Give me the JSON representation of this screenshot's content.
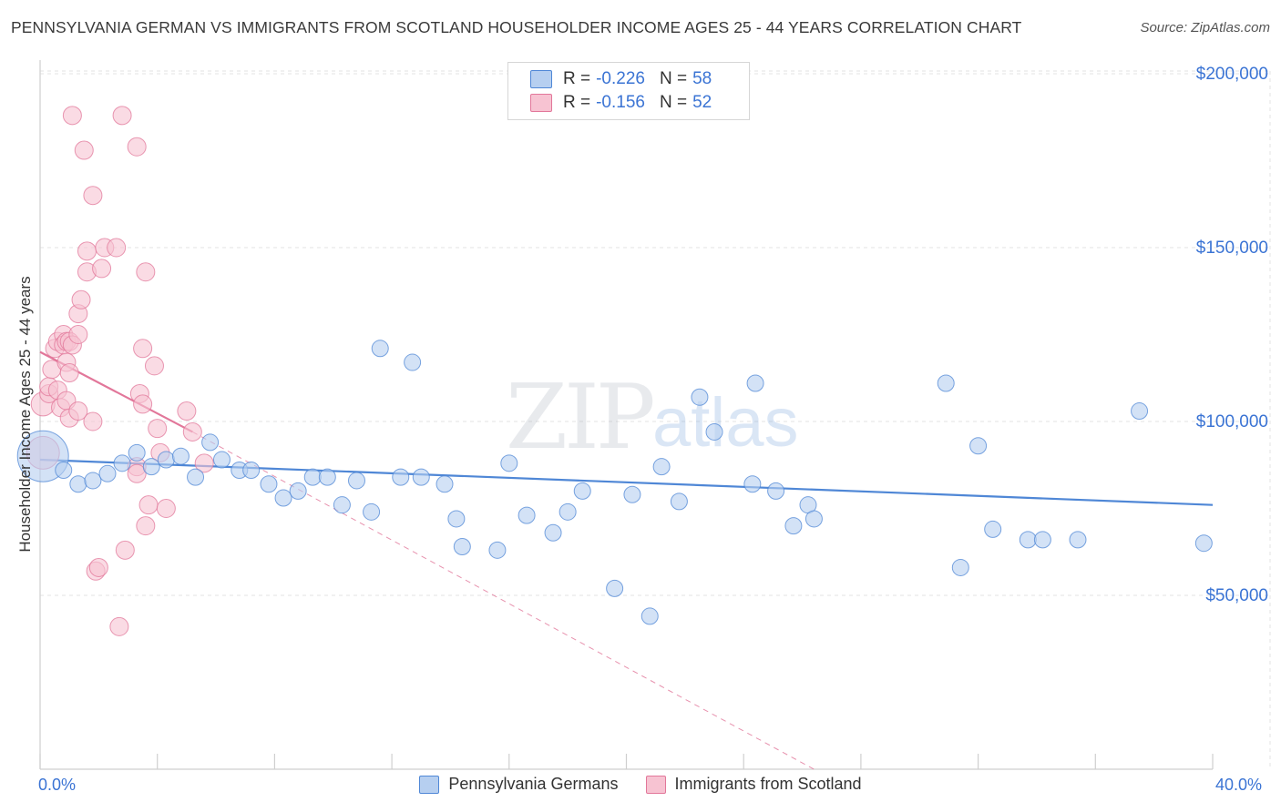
{
  "title": "PENNSYLVANIA GERMAN VS IMMIGRANTS FROM SCOTLAND HOUSEHOLDER INCOME AGES 25 - 44 YEARS CORRELATION CHART",
  "source": "Source: ZipAtlas.com",
  "watermark": {
    "zip": "ZIP",
    "atlas": "atlas"
  },
  "legend": {
    "r_label": "R =",
    "n_label": "N =",
    "series1": {
      "r": "-0.226",
      "n": "58"
    },
    "series2": {
      "r": "-0.156",
      "n": "52"
    }
  },
  "x_axis": {
    "min_label": "0.0%",
    "max_label": "40.0%"
  },
  "chart_data": {
    "type": "scatter",
    "title": "PENNSYLVANIA GERMAN VS IMMIGRANTS FROM SCOTLAND HOUSEHOLDER INCOME AGES 25 - 44 YEARS CORRELATION CHART",
    "xlabel": "",
    "ylabel": "Householder Income Ages 25 - 44 years",
    "xlim": [
      0,
      40
    ],
    "ylim": [
      0,
      210000
    ],
    "y_ticks": [
      50000,
      100000,
      150000,
      200000
    ],
    "y_tick_labels": [
      "$50,000",
      "$100,000",
      "$150,000",
      "$200,000"
    ],
    "grid": true,
    "series": [
      {
        "name": "Pennsylvania Germans",
        "color": "#4f87d6",
        "fill": "#b6cff0",
        "r": -0.226,
        "n": 58,
        "trend": {
          "x": [
            0,
            40
          ],
          "y": [
            89000,
            76000
          ],
          "style": "solid"
        },
        "points": [
          [
            0.1,
            90000,
            28
          ],
          [
            0.8,
            86000,
            9
          ],
          [
            1.3,
            82000,
            9
          ],
          [
            1.8,
            83000,
            9
          ],
          [
            2.3,
            85000,
            9
          ],
          [
            2.8,
            88000,
            9
          ],
          [
            3.3,
            91000,
            9
          ],
          [
            3.8,
            87000,
            9
          ],
          [
            4.3,
            89000,
            9
          ],
          [
            4.8,
            90000,
            9
          ],
          [
            5.3,
            84000,
            9
          ],
          [
            5.8,
            94000,
            9
          ],
          [
            6.2,
            89000,
            9
          ],
          [
            6.8,
            86000,
            9
          ],
          [
            7.2,
            86000,
            9
          ],
          [
            7.8,
            82000,
            9
          ],
          [
            8.3,
            78000,
            9
          ],
          [
            8.8,
            80000,
            9
          ],
          [
            9.3,
            84000,
            9
          ],
          [
            9.8,
            84000,
            9
          ],
          [
            10.3,
            76000,
            9
          ],
          [
            10.8,
            83000,
            9
          ],
          [
            11.3,
            74000,
            9
          ],
          [
            12.3,
            84000,
            9
          ],
          [
            13.0,
            84000,
            9
          ],
          [
            13.8,
            82000,
            9
          ],
          [
            14.2,
            72000,
            9
          ],
          [
            14.4,
            64000,
            9
          ],
          [
            15.6,
            63000,
            9
          ],
          [
            16.0,
            88000,
            9
          ],
          [
            16.6,
            73000,
            9
          ],
          [
            17.5,
            68000,
            9
          ],
          [
            18.0,
            74000,
            9
          ],
          [
            18.5,
            80000,
            9
          ],
          [
            19.6,
            52000,
            9
          ],
          [
            20.2,
            79000,
            9
          ],
          [
            20.8,
            44000,
            9
          ],
          [
            21.2,
            87000,
            9
          ],
          [
            21.8,
            77000,
            9
          ],
          [
            22.5,
            107000,
            9
          ],
          [
            23.0,
            97000,
            9
          ],
          [
            24.3,
            82000,
            9
          ],
          [
            24.4,
            111000,
            9
          ],
          [
            25.1,
            80000,
            9
          ],
          [
            25.7,
            70000,
            9
          ],
          [
            26.2,
            76000,
            9
          ],
          [
            26.4,
            72000,
            9
          ],
          [
            11.6,
            121000,
            9
          ],
          [
            12.7,
            117000,
            9
          ],
          [
            30.9,
            111000,
            9
          ],
          [
            31.4,
            58000,
            9
          ],
          [
            32.0,
            93000,
            9
          ],
          [
            32.5,
            69000,
            9
          ],
          [
            33.7,
            66000,
            9
          ],
          [
            34.2,
            66000,
            9
          ],
          [
            35.4,
            66000,
            9
          ],
          [
            37.5,
            103000,
            9
          ],
          [
            39.7,
            65000,
            9
          ]
        ]
      },
      {
        "name": "Immigrants from Scotland",
        "color": "#e2779a",
        "fill": "#f7c3d2",
        "r": -0.156,
        "n": 52,
        "trend": {
          "x": [
            0,
            5.2
          ],
          "y": [
            120000,
            97000
          ],
          "style": "solid"
        },
        "trend_extended": {
          "x": [
            5.2,
            26.4
          ],
          "y": [
            97000,
            0
          ],
          "style": "dashed"
        },
        "points": [
          [
            0.1,
            91000,
            18
          ],
          [
            0.1,
            105000,
            13
          ],
          [
            0.3,
            108000,
            10
          ],
          [
            0.3,
            110000,
            10
          ],
          [
            0.4,
            115000,
            10
          ],
          [
            0.5,
            121000,
            10
          ],
          [
            0.6,
            123000,
            10
          ],
          [
            0.6,
            109000,
            10
          ],
          [
            0.7,
            104000,
            10
          ],
          [
            0.8,
            125000,
            10
          ],
          [
            0.8,
            122000,
            10
          ],
          [
            0.9,
            117000,
            10
          ],
          [
            0.9,
            123000,
            10
          ],
          [
            0.9,
            106000,
            10
          ],
          [
            1.0,
            114000,
            10
          ],
          [
            1.0,
            101000,
            10
          ],
          [
            1.0,
            123000,
            10
          ],
          [
            1.1,
            122000,
            10
          ],
          [
            1.3,
            103000,
            10
          ],
          [
            1.3,
            125000,
            10
          ],
          [
            1.3,
            131000,
            10
          ],
          [
            1.4,
            135000,
            10
          ],
          [
            1.6,
            143000,
            10
          ],
          [
            1.6,
            149000,
            10
          ],
          [
            1.8,
            100000,
            10
          ],
          [
            1.9,
            57000,
            10
          ],
          [
            2.0,
            58000,
            10
          ],
          [
            2.1,
            144000,
            10
          ],
          [
            2.2,
            150000,
            10
          ],
          [
            1.8,
            165000,
            10
          ],
          [
            1.5,
            178000,
            10
          ],
          [
            1.1,
            188000,
            10
          ],
          [
            2.8,
            188000,
            10
          ],
          [
            3.3,
            179000,
            10
          ],
          [
            3.6,
            143000,
            10
          ],
          [
            3.3,
            87000,
            10
          ],
          [
            3.4,
            108000,
            10
          ],
          [
            3.5,
            105000,
            10
          ],
          [
            3.5,
            121000,
            10
          ],
          [
            3.9,
            116000,
            10
          ],
          [
            3.7,
            76000,
            10
          ],
          [
            3.6,
            70000,
            10
          ],
          [
            4.0,
            98000,
            10
          ],
          [
            4.1,
            91000,
            10
          ],
          [
            4.3,
            75000,
            10
          ],
          [
            5.0,
            103000,
            10
          ],
          [
            5.2,
            97000,
            10
          ],
          [
            5.6,
            88000,
            10
          ],
          [
            2.7,
            41000,
            10
          ],
          [
            2.9,
            63000,
            10
          ],
          [
            3.3,
            85000,
            10
          ],
          [
            2.6,
            150000,
            10
          ]
        ]
      }
    ]
  }
}
